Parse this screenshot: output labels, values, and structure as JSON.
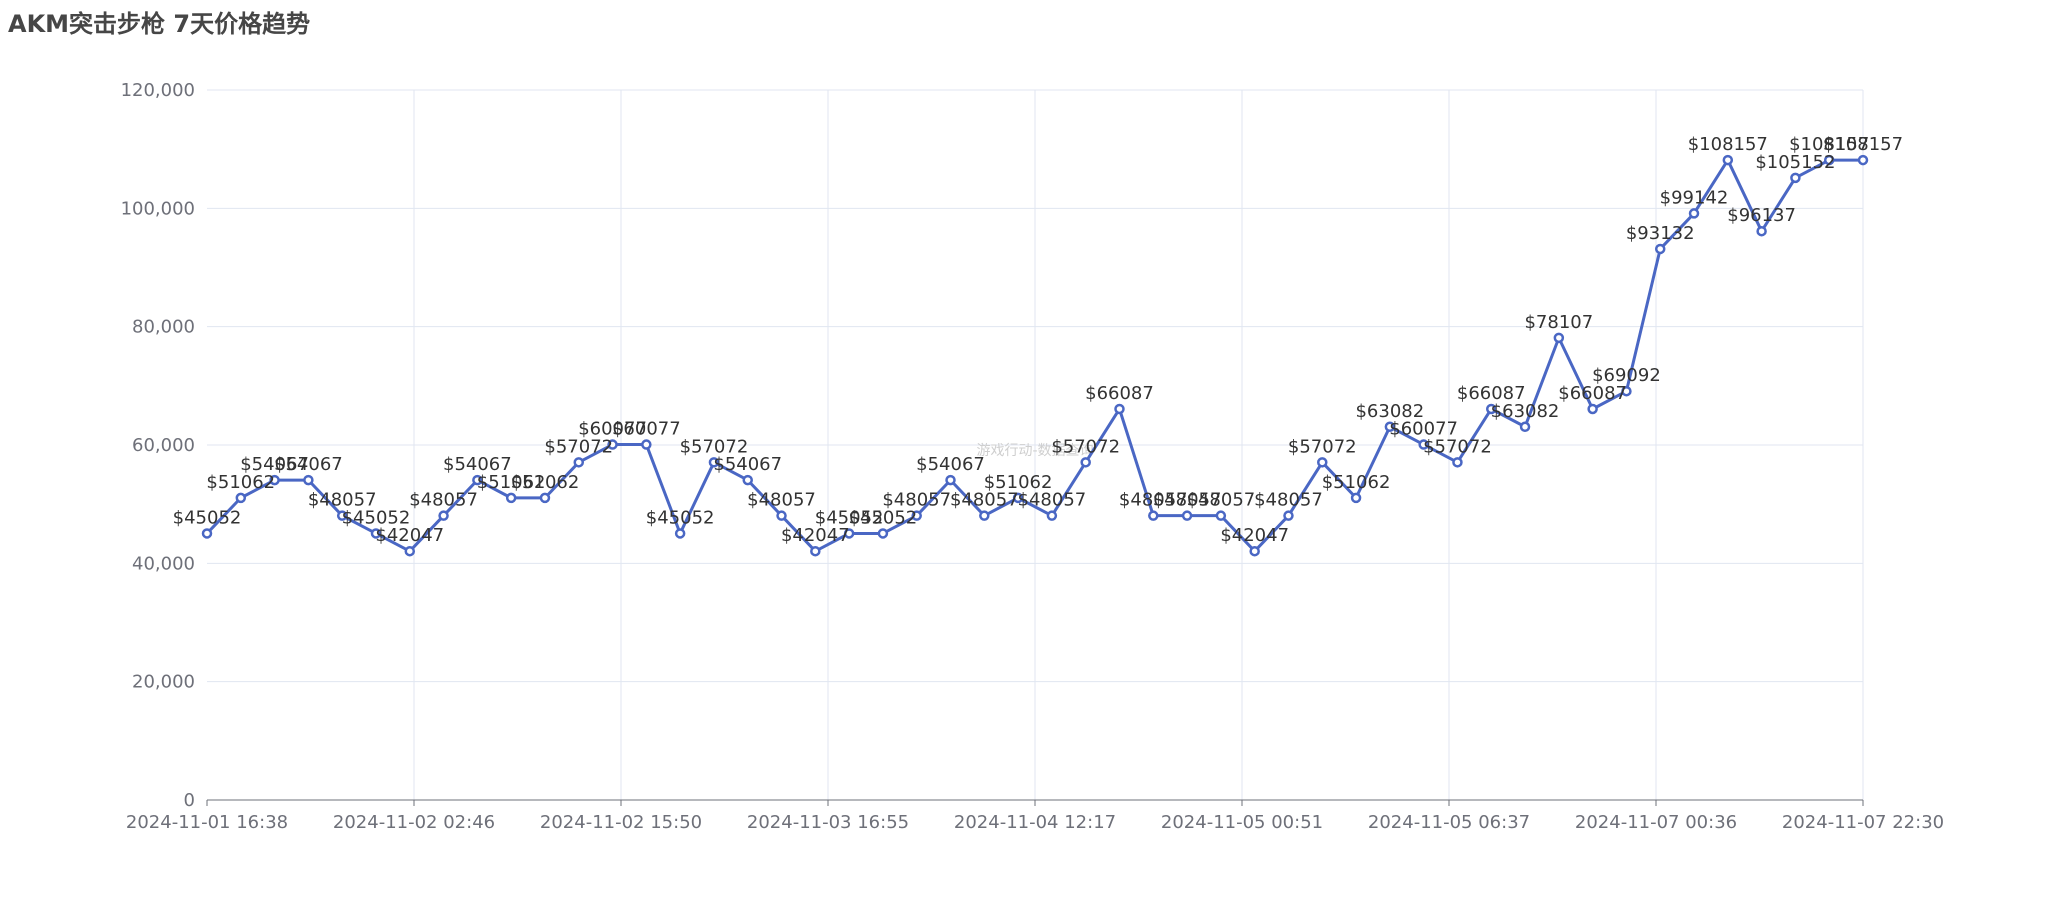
{
  "chart_data": {
    "type": "line",
    "title": "AKM突击步枪 7天价格趋势",
    "watermark": "游戏行动-数据查询",
    "ylim": [
      0,
      120000
    ],
    "y_ticks": [
      "0",
      "20,000",
      "40,000",
      "60,000",
      "80,000",
      "100,000",
      "120,000"
    ],
    "x_tick_labels": [
      "2024-11-01 16:38",
      "2024-11-02 02:46",
      "2024-11-02 15:50",
      "2024-11-03 16:55",
      "2024-11-04 12:17",
      "2024-11-05 00:51",
      "2024-11-05 06:37",
      "2024-11-07 00:36",
      "2024-11-07 22:30"
    ],
    "grid": true,
    "value_prefix": "$",
    "series": [
      {
        "color": "#4a67c4",
        "values": [
          45052,
          51062,
          54067,
          54067,
          48057,
          45052,
          42047,
          48057,
          54067,
          51062,
          51062,
          57072,
          60077,
          60077,
          45052,
          57072,
          54067,
          48057,
          42047,
          45052,
          45052,
          48057,
          54067,
          48057,
          51062,
          48057,
          57072,
          66087,
          48057,
          48057,
          48057,
          42047,
          48057,
          57072,
          51062,
          63082,
          60077,
          57072,
          66087,
          63082,
          78107,
          66087,
          69092,
          93132,
          99142,
          108157,
          96137,
          105152,
          108157,
          108157
        ]
      }
    ]
  }
}
